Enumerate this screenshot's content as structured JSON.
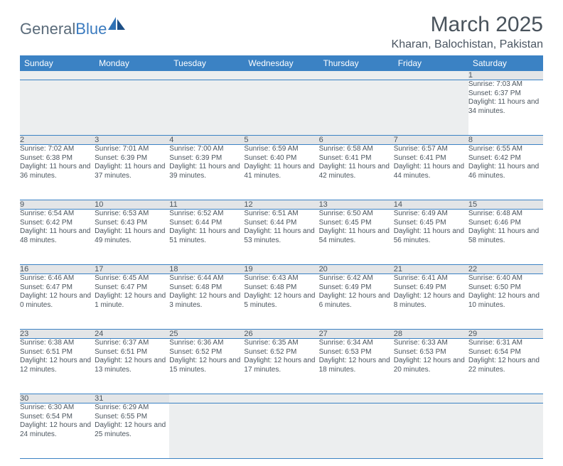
{
  "brand": {
    "word1": "General",
    "word2": "Blue",
    "color_word1": "#5a6b7a",
    "color_word2": "#3b7bbf"
  },
  "title": "March 2025",
  "location": "Kharan, Balochistan, Pakistan",
  "header_bg": "#3b82c4",
  "header_fg": "#ffffff",
  "daynum_bg": "#e3e5e7",
  "blank_bg": "#eceeef",
  "rule_color": "#3b82c4",
  "text_color": "#4b555e",
  "weekdays": [
    "Sunday",
    "Monday",
    "Tuesday",
    "Wednesday",
    "Thursday",
    "Friday",
    "Saturday"
  ],
  "weeks": [
    {
      "nums": [
        "",
        "",
        "",
        "",
        "",
        "",
        "1"
      ],
      "info": [
        "",
        "",
        "",
        "",
        "",
        "",
        "Sunrise: 7:03 AM\nSunset: 6:37 PM\nDaylight: 11 hours and 34 minutes."
      ]
    },
    {
      "nums": [
        "2",
        "3",
        "4",
        "5",
        "6",
        "7",
        "8"
      ],
      "info": [
        "Sunrise: 7:02 AM\nSunset: 6:38 PM\nDaylight: 11 hours and 36 minutes.",
        "Sunrise: 7:01 AM\nSunset: 6:39 PM\nDaylight: 11 hours and 37 minutes.",
        "Sunrise: 7:00 AM\nSunset: 6:39 PM\nDaylight: 11 hours and 39 minutes.",
        "Sunrise: 6:59 AM\nSunset: 6:40 PM\nDaylight: 11 hours and 41 minutes.",
        "Sunrise: 6:58 AM\nSunset: 6:41 PM\nDaylight: 11 hours and 42 minutes.",
        "Sunrise: 6:57 AM\nSunset: 6:41 PM\nDaylight: 11 hours and 44 minutes.",
        "Sunrise: 6:55 AM\nSunset: 6:42 PM\nDaylight: 11 hours and 46 minutes."
      ]
    },
    {
      "nums": [
        "9",
        "10",
        "11",
        "12",
        "13",
        "14",
        "15"
      ],
      "info": [
        "Sunrise: 6:54 AM\nSunset: 6:42 PM\nDaylight: 11 hours and 48 minutes.",
        "Sunrise: 6:53 AM\nSunset: 6:43 PM\nDaylight: 11 hours and 49 minutes.",
        "Sunrise: 6:52 AM\nSunset: 6:44 PM\nDaylight: 11 hours and 51 minutes.",
        "Sunrise: 6:51 AM\nSunset: 6:44 PM\nDaylight: 11 hours and 53 minutes.",
        "Sunrise: 6:50 AM\nSunset: 6:45 PM\nDaylight: 11 hours and 54 minutes.",
        "Sunrise: 6:49 AM\nSunset: 6:45 PM\nDaylight: 11 hours and 56 minutes.",
        "Sunrise: 6:48 AM\nSunset: 6:46 PM\nDaylight: 11 hours and 58 minutes."
      ]
    },
    {
      "nums": [
        "16",
        "17",
        "18",
        "19",
        "20",
        "21",
        "22"
      ],
      "info": [
        "Sunrise: 6:46 AM\nSunset: 6:47 PM\nDaylight: 12 hours and 0 minutes.",
        "Sunrise: 6:45 AM\nSunset: 6:47 PM\nDaylight: 12 hours and 1 minute.",
        "Sunrise: 6:44 AM\nSunset: 6:48 PM\nDaylight: 12 hours and 3 minutes.",
        "Sunrise: 6:43 AM\nSunset: 6:48 PM\nDaylight: 12 hours and 5 minutes.",
        "Sunrise: 6:42 AM\nSunset: 6:49 PM\nDaylight: 12 hours and 6 minutes.",
        "Sunrise: 6:41 AM\nSunset: 6:49 PM\nDaylight: 12 hours and 8 minutes.",
        "Sunrise: 6:40 AM\nSunset: 6:50 PM\nDaylight: 12 hours and 10 minutes."
      ]
    },
    {
      "nums": [
        "23",
        "24",
        "25",
        "26",
        "27",
        "28",
        "29"
      ],
      "info": [
        "Sunrise: 6:38 AM\nSunset: 6:51 PM\nDaylight: 12 hours and 12 minutes.",
        "Sunrise: 6:37 AM\nSunset: 6:51 PM\nDaylight: 12 hours and 13 minutes.",
        "Sunrise: 6:36 AM\nSunset: 6:52 PM\nDaylight: 12 hours and 15 minutes.",
        "Sunrise: 6:35 AM\nSunset: 6:52 PM\nDaylight: 12 hours and 17 minutes.",
        "Sunrise: 6:34 AM\nSunset: 6:53 PM\nDaylight: 12 hours and 18 minutes.",
        "Sunrise: 6:33 AM\nSunset: 6:53 PM\nDaylight: 12 hours and 20 minutes.",
        "Sunrise: 6:31 AM\nSunset: 6:54 PM\nDaylight: 12 hours and 22 minutes."
      ]
    },
    {
      "nums": [
        "30",
        "31",
        "",
        "",
        "",
        "",
        ""
      ],
      "info": [
        "Sunrise: 6:30 AM\nSunset: 6:54 PM\nDaylight: 12 hours and 24 minutes.",
        "Sunrise: 6:29 AM\nSunset: 6:55 PM\nDaylight: 12 hours and 25 minutes.",
        "",
        "",
        "",
        "",
        ""
      ]
    }
  ]
}
